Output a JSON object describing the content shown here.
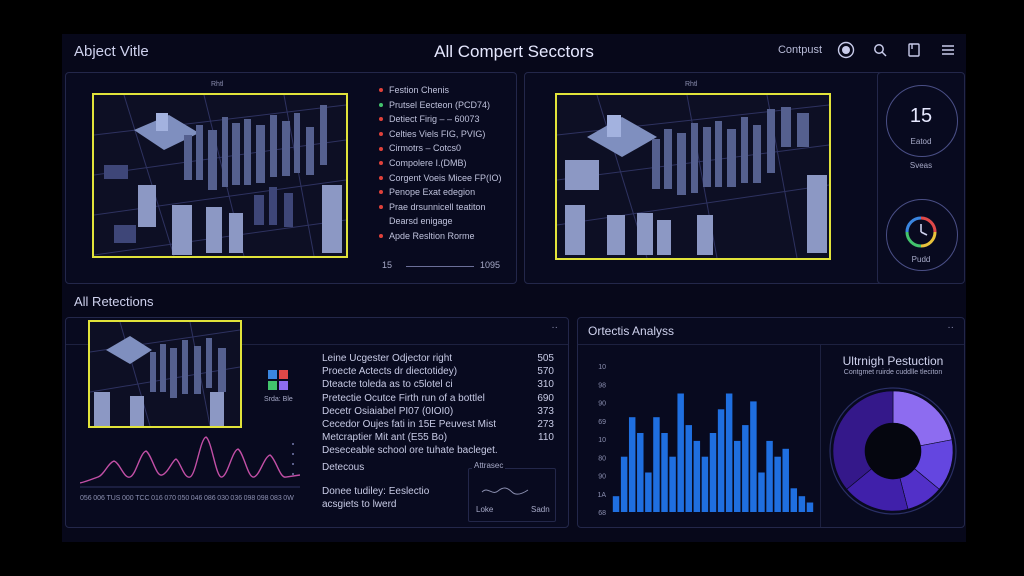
{
  "header": {
    "app_title": "Abject Vitle",
    "center_title": "All Compert Secctors",
    "right_text": "Contpust"
  },
  "top_left": {
    "legend": [
      {
        "label": "Festion Chenis",
        "color": "#e0413a"
      },
      {
        "label": "Prutsel Eecteon (PCD74)",
        "color": "#43c36d"
      },
      {
        "label": "Detiect Firig – – 60073",
        "color": "#e0413a"
      },
      {
        "label": "Celties Viels FIG, PVIG)",
        "color": "#e0413a"
      },
      {
        "label": "Cirmotrs – Cotcs0",
        "color": "#e0413a"
      },
      {
        "label": "Compolere I.(DMB)",
        "color": "#e0413a"
      },
      {
        "label": "Corgent Voeis Micee FP(IO)",
        "color": "#e0413a"
      },
      {
        "label": "Penope Exat edegion",
        "color": "#e0413a"
      },
      {
        "label": "Prae drsunnicell teatiton",
        "color": "#e0413a"
      },
      {
        "label": "Dearsd enigage",
        "color": ""
      },
      {
        "label": "Apde Resltion Rorme",
        "color": "#e0413a"
      }
    ],
    "range_start": "15",
    "range_end": "1095",
    "thumb_top_label": "Rhtl"
  },
  "top_right": {
    "thumb_top_label": "Rhtl"
  },
  "side": {
    "count": "15",
    "count_label": "Eatod",
    "count_sub": "Sveas",
    "clock_label": "Pudd"
  },
  "bottom_left": {
    "section_title": "All Retections",
    "icon_caption": "Srda: Ble",
    "rows": [
      {
        "label": "Leine Ucgester Odjector right",
        "value": "505"
      },
      {
        "label": "Proecte Actects dr diectotidey)",
        "value": "570"
      },
      {
        "label": "Dteacte toleda as to c5lotel ci",
        "value": "310"
      },
      {
        "label": "Pretectie Ocutce Firth run of a bottlel",
        "value": "690"
      },
      {
        "label": "Decetr Osiaiabel PI07 (0IOI0)",
        "value": "373"
      },
      {
        "label": "Cecedor Oujes fati in 15E Peuvest Mist",
        "value": "273"
      },
      {
        "label": "Metcraptier Mit ant (E55 Bo)",
        "value": "110"
      },
      {
        "label": "Deseceable school ore tuhate bacleget.",
        "value": ""
      }
    ],
    "subsection_title": "Detecous",
    "note_line1": "Donee tudiley: Eeslectio",
    "note_line2": "acsgiets to lwerd",
    "mini_title": "Attrasec",
    "mini_foot_left": "Loke",
    "mini_foot_right": "Sadn",
    "wave_ticks": [
      "056",
      "006",
      "TUS",
      "000",
      "TCC",
      "016",
      "070",
      "050",
      "046",
      "086",
      "030",
      "036",
      "098",
      "098",
      "083",
      "0W"
    ]
  },
  "bottom_mid": {
    "title": "Ortectis Analyss"
  },
  "bottom_right": {
    "title": "Ultrnigh Pestuction",
    "subtitle": "Contgmet ruirde cuddlle tleciton"
  },
  "chart_data": [
    {
      "type": "bar",
      "title": "Ortectis Analyss",
      "y_tick_labels": [
        "10",
        "98",
        "90",
        "69",
        "10",
        "80",
        "90",
        "1A",
        "68"
      ],
      "values": [
        10,
        35,
        60,
        50,
        25,
        60,
        50,
        35,
        75,
        55,
        45,
        35,
        50,
        65,
        75,
        45,
        55,
        70,
        25,
        45,
        35,
        40,
        15,
        10,
        6
      ],
      "ylim": [
        0,
        100
      ],
      "color": "#1f6fe0"
    },
    {
      "type": "pie",
      "title": "Ultrnigh Pestuction",
      "values": [
        22,
        14,
        10,
        18,
        36
      ],
      "colors": [
        "#8d6cf0",
        "#6446e0",
        "#5230c8",
        "#4020aa",
        "#34188a"
      ]
    }
  ],
  "colors": {
    "accent_yellow": "#e1e33a",
    "panel_border": "#23274a",
    "bar_blue": "#1f6fe0",
    "wave_pink": "#c24fa6"
  }
}
